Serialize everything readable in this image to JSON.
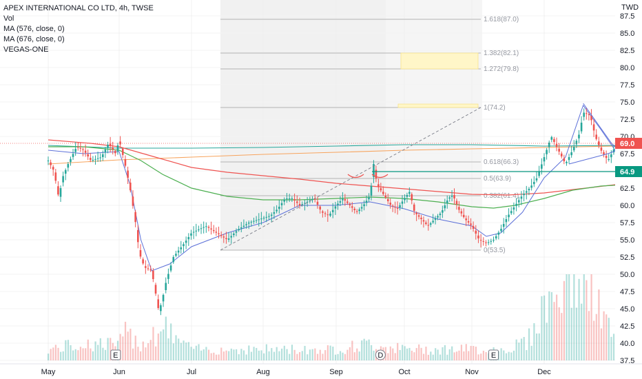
{
  "header": {
    "title": "APEX INTERNATIONAL CO LTD, 4h, TWSE",
    "indicators": [
      "Vol",
      "MA (576, close, 0)",
      "MA (676, close, 0)",
      "VEGAS-ONE"
    ]
  },
  "colors": {
    "up": "#26a69a",
    "down": "#ef5350",
    "fib_shade": "#f0f0f0",
    "ma_red": "#ef5350",
    "ma_green": "#4caf50",
    "ma_blue": "#5b6fd8",
    "ma_orange": "#f7a35c",
    "last_price": "#ef5350",
    "support_line": "#089981"
  },
  "chart_data": {
    "type": "candlestick",
    "y_unit": "TWD",
    "ylim": [
      36.5,
      88.0
    ],
    "y_ticks": [
      37.5,
      40.0,
      42.5,
      45.0,
      47.5,
      50.0,
      52.5,
      55.0,
      57.5,
      60.0,
      62.5,
      65.0,
      67.5,
      70.0,
      72.5,
      75.0,
      77.5,
      80.0,
      82.5,
      85.0,
      87.5
    ],
    "x_ticks": [
      "May",
      "Jun",
      "Jul",
      "Aug",
      "Sep",
      "Oct",
      "Nov",
      "Dec"
    ],
    "last_price": "69.0",
    "support_price": "64.9",
    "fib_levels": [
      {
        "label": "1.618(87.0)",
        "value": 87.0
      },
      {
        "label": "1.382(82.1)",
        "value": 82.1
      },
      {
        "label": "1.272(79.8)",
        "value": 79.8
      },
      {
        "label": "1(74.2)",
        "value": 74.2
      },
      {
        "label": "0.618(66.3)",
        "value": 66.3
      },
      {
        "label": "0.5(63.9)",
        "value": 63.9
      },
      {
        "label": "0.382(61.4)",
        "value": 61.4
      },
      {
        "label": "0(53.5)",
        "value": 53.5
      }
    ],
    "target_zones": [
      {
        "from": 79.8,
        "to": 82.1
      },
      {
        "from": 74.2,
        "to": 74.7
      }
    ],
    "price_path": [
      [
        0,
        66.5
      ],
      [
        0.08,
        65.0
      ],
      [
        0.15,
        61.0
      ],
      [
        0.2,
        64.0
      ],
      [
        0.28,
        66.0
      ],
      [
        0.4,
        68.5
      ],
      [
        0.5,
        68.0
      ],
      [
        0.6,
        66.5
      ],
      [
        0.75,
        67.0
      ],
      [
        0.85,
        69.0
      ],
      [
        0.95,
        67.5
      ],
      [
        1.0,
        69.5
      ],
      [
        1.08,
        66.0
      ],
      [
        1.15,
        62.5
      ],
      [
        1.22,
        58.0
      ],
      [
        1.28,
        53.0
      ],
      [
        1.35,
        51.0
      ],
      [
        1.45,
        50.5
      ],
      [
        1.55,
        44.5
      ],
      [
        1.6,
        46.5
      ],
      [
        1.65,
        49.0
      ],
      [
        1.75,
        52.5
      ],
      [
        1.9,
        54.5
      ],
      [
        2.0,
        56.0
      ],
      [
        2.2,
        57.0
      ],
      [
        2.35,
        56.0
      ],
      [
        2.5,
        55.0
      ],
      [
        2.65,
        56.5
      ],
      [
        2.8,
        57.5
      ],
      [
        2.95,
        58.0
      ],
      [
        3.1,
        58.5
      ],
      [
        3.2,
        59.5
      ],
      [
        3.3,
        61.0
      ],
      [
        3.4,
        61.0
      ],
      [
        3.5,
        60.0
      ],
      [
        3.6,
        60.5
      ],
      [
        3.7,
        61.0
      ],
      [
        3.8,
        59.0
      ],
      [
        3.9,
        58.5
      ],
      [
        4.0,
        60.0
      ],
      [
        4.1,
        61.0
      ],
      [
        4.2,
        60.0
      ],
      [
        4.3,
        59.0
      ],
      [
        4.4,
        60.0
      ],
      [
        4.5,
        61.5
      ],
      [
        4.55,
        66.0
      ],
      [
        4.6,
        63.0
      ],
      [
        4.7,
        61.5
      ],
      [
        4.8,
        60.0
      ],
      [
        4.9,
        59.5
      ],
      [
        5.0,
        61.0
      ],
      [
        5.08,
        62.0
      ],
      [
        5.15,
        59.0
      ],
      [
        5.25,
        58.0
      ],
      [
        5.35,
        57.0
      ],
      [
        5.45,
        58.0
      ],
      [
        5.55,
        59.0
      ],
      [
        5.65,
        61.0
      ],
      [
        5.72,
        61.5
      ],
      [
        5.8,
        59.5
      ],
      [
        5.9,
        58.0
      ],
      [
        6.0,
        57.0
      ],
      [
        6.1,
        55.0
      ],
      [
        6.2,
        54.5
      ],
      [
        6.3,
        55.0
      ],
      [
        6.4,
        56.5
      ],
      [
        6.5,
        58.5
      ],
      [
        6.6,
        60.0
      ],
      [
        6.7,
        61.5
      ],
      [
        6.8,
        62.5
      ],
      [
        6.9,
        64.0
      ],
      [
        7.0,
        67.0
      ],
      [
        7.1,
        70.0
      ],
      [
        7.2,
        68.0
      ],
      [
        7.3,
        66.0
      ],
      [
        7.4,
        68.0
      ],
      [
        7.5,
        70.5
      ],
      [
        7.55,
        73.5
      ],
      [
        7.65,
        73.0
      ],
      [
        7.72,
        70.0
      ],
      [
        7.8,
        68.0
      ],
      [
        7.9,
        66.5
      ],
      [
        8.0,
        68.5
      ],
      [
        8.08,
        67.5
      ],
      [
        8.15,
        69.0
      ]
    ],
    "volume_path": [
      [
        0,
        2
      ],
      [
        0.5,
        3
      ],
      [
        1.0,
        3
      ],
      [
        1.1,
        5
      ],
      [
        1.3,
        3
      ],
      [
        1.6,
        6
      ],
      [
        2.0,
        2
      ],
      [
        2.5,
        2
      ],
      [
        3.0,
        2
      ],
      [
        3.5,
        2
      ],
      [
        4.0,
        2
      ],
      [
        4.5,
        3
      ],
      [
        5.0,
        2
      ],
      [
        5.5,
        2
      ],
      [
        6.0,
        2
      ],
      [
        6.5,
        2
      ],
      [
        6.8,
        4
      ],
      [
        7.0,
        10
      ],
      [
        7.2,
        12
      ],
      [
        7.4,
        15
      ],
      [
        7.5,
        16
      ],
      [
        7.6,
        12
      ],
      [
        7.8,
        9
      ],
      [
        8.0,
        3
      ],
      [
        8.15,
        2
      ]
    ],
    "ma_red_path": [
      [
        0,
        69.5
      ],
      [
        0.6,
        69.0
      ],
      [
        1.0,
        68.5
      ],
      [
        1.5,
        67.0
      ],
      [
        2.0,
        65.5
      ],
      [
        2.5,
        64.8
      ],
      [
        3.0,
        64.3
      ],
      [
        3.5,
        63.8
      ],
      [
        4.0,
        63.2
      ],
      [
        4.5,
        62.8
      ],
      [
        5.0,
        62.4
      ],
      [
        5.5,
        62.0
      ],
      [
        6.0,
        61.6
      ],
      [
        6.5,
        61.5
      ],
      [
        7.0,
        61.8
      ],
      [
        7.5,
        62.4
      ],
      [
        8.0,
        63.0
      ],
      [
        8.15,
        63.2
      ]
    ],
    "ma_green_path": [
      [
        0,
        68.5
      ],
      [
        0.5,
        68.5
      ],
      [
        1.0,
        68.0
      ],
      [
        1.3,
        66.5
      ],
      [
        1.6,
        64.5
      ],
      [
        2.0,
        62.5
      ],
      [
        2.5,
        61.3
      ],
      [
        3.0,
        60.8
      ],
      [
        3.5,
        60.8
      ],
      [
        4.0,
        61.0
      ],
      [
        4.5,
        61.2
      ],
      [
        5.0,
        61.0
      ],
      [
        5.5,
        60.5
      ],
      [
        6.0,
        59.8
      ],
      [
        6.3,
        59.6
      ],
      [
        6.6,
        60.0
      ],
      [
        7.0,
        61.0
      ],
      [
        7.4,
        62.2
      ],
      [
        7.8,
        62.8
      ],
      [
        8.15,
        63.0
      ]
    ],
    "ma_blue_path": [
      [
        0,
        68.0
      ],
      [
        0.5,
        67.5
      ],
      [
        1.0,
        67.8
      ],
      [
        1.15,
        63.0
      ],
      [
        1.3,
        55.0
      ],
      [
        1.45,
        50.5
      ],
      [
        1.7,
        51.5
      ],
      [
        2.0,
        54.0
      ],
      [
        2.5,
        56.0
      ],
      [
        3.0,
        57.5
      ],
      [
        3.5,
        60.0
      ],
      [
        4.0,
        60.0
      ],
      [
        4.5,
        60.5
      ],
      [
        5.0,
        59.5
      ],
      [
        5.5,
        58.0
      ],
      [
        6.0,
        57.0
      ],
      [
        6.2,
        55.5
      ],
      [
        6.4,
        56.0
      ],
      [
        6.7,
        59.0
      ],
      [
        7.0,
        64.0
      ],
      [
        7.3,
        67.0
      ],
      [
        7.55,
        74.5
      ],
      [
        7.8,
        71.0
      ],
      [
        8.0,
        68.0
      ],
      [
        8.15,
        66.0
      ]
    ],
    "ma_orange_path": [
      [
        0,
        66.0
      ],
      [
        1.0,
        66.6
      ],
      [
        2.0,
        67.0
      ],
      [
        3.0,
        67.4
      ],
      [
        4.0,
        67.7
      ],
      [
        5.0,
        68.0
      ],
      [
        6.0,
        68.2
      ],
      [
        7.0,
        68.4
      ],
      [
        8.0,
        68.6
      ],
      [
        8.15,
        68.7
      ]
    ],
    "ma_teal_path": [
      [
        0,
        68.7
      ],
      [
        1.0,
        68.3
      ],
      [
        2.0,
        68.3
      ],
      [
        3.0,
        68.4
      ],
      [
        4.0,
        68.6
      ],
      [
        5.0,
        68.8
      ],
      [
        6.0,
        68.8
      ],
      [
        7.0,
        68.6
      ],
      [
        8.0,
        68.7
      ],
      [
        8.15,
        68.7
      ]
    ]
  },
  "events": [
    {
      "label": "E",
      "pos": 0.95
    },
    {
      "label": "D",
      "pos": 4.65
    },
    {
      "label": "E",
      "pos": 6.3
    }
  ]
}
